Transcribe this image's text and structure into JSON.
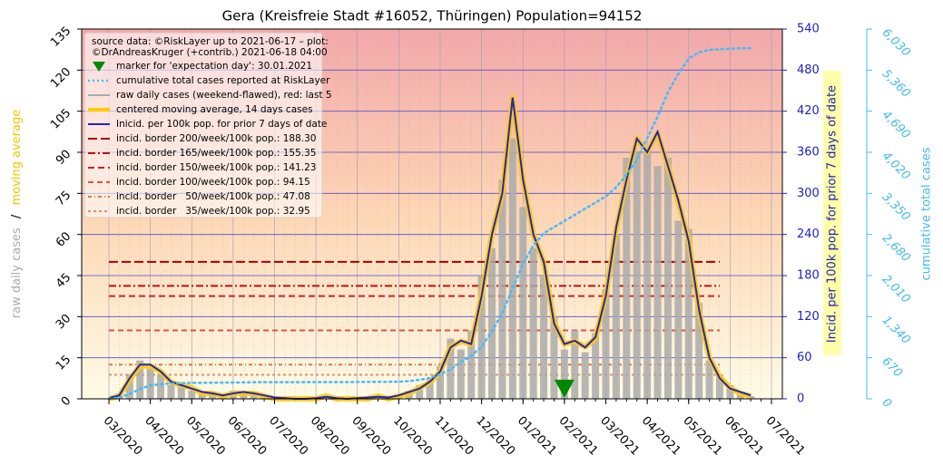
{
  "chart_data": {
    "type": "line",
    "title": "Gera (Kreisfreie Stadt #16052, Thüringen) Population=94152",
    "source": [
      "source data: ©RiskLayer up to 2021-06-17 – plot:",
      "©DrAndreasKruger (+contrib.) 2021-06-18 04:00"
    ],
    "ylabel": [
      "raw daily cases",
      "/",
      "moving average"
    ],
    "y2label": "Incid. per 100k pop. for prior 7 days of date",
    "y3label": "cumulative total cases",
    "grid": true,
    "categories": [
      "03/2020",
      null,
      null,
      null,
      "04/2020",
      null,
      null,
      null,
      "05/2020",
      null,
      null,
      null,
      "06/2020",
      null,
      null,
      null,
      "07/2020",
      null,
      null,
      null,
      "08/2020",
      null,
      null,
      null,
      "09/2020",
      null,
      null,
      null,
      "10/2020",
      null,
      null,
      null,
      "11/2020",
      null,
      null,
      null,
      "12/2020",
      null,
      null,
      null,
      "01/2021",
      null,
      null,
      null,
      "02/2021",
      null,
      null,
      null,
      "03/2021",
      null,
      null,
      null,
      "04/2021",
      null,
      null,
      null,
      "05/2021",
      null,
      null,
      null,
      "06/2021",
      null,
      null,
      null,
      "07/2021"
    ],
    "ylim": [
      0,
      135
    ],
    "yticks": [
      0,
      15,
      30,
      45,
      60,
      75,
      90,
      105,
      120,
      135
    ],
    "y2lim": [
      0,
      540
    ],
    "y2ticks": [
      0,
      60,
      120,
      180,
      240,
      300,
      360,
      420,
      480,
      540
    ],
    "y3lim": [
      0,
      6030
    ],
    "y3ticks": [
      0,
      670,
      {
        "value": 1340,
        "label": "1,340"
      },
      {
        "value": 2010,
        "label": "2,010"
      },
      {
        "value": 2680,
        "label": "2,680"
      },
      {
        "value": 3350,
        "label": "3,350"
      },
      {
        "value": 4020,
        "label": "4,020"
      },
      {
        "value": 4690,
        "label": "4,690"
      },
      {
        "value": 5360,
        "label": "5,360"
      },
      {
        "value": 6030,
        "label": "6,030"
      }
    ],
    "series": [
      {
        "name": "marker for 'expectation day': 30.01.2021",
        "style": "marker",
        "color": "#008800",
        "values": [
          null,
          null,
          null,
          null,
          null,
          null,
          null,
          null,
          null,
          null,
          null,
          null,
          null,
          null,
          null,
          null,
          null,
          null,
          null,
          null,
          null,
          null,
          null,
          null,
          null,
          null,
          null,
          null,
          null,
          null,
          null,
          null,
          null,
          null,
          null,
          null,
          null,
          null,
          null,
          null,
          null,
          null,
          null,
          null,
          3,
          null,
          null,
          null,
          null,
          null,
          null,
          null,
          null,
          null,
          null,
          null,
          null,
          null,
          null,
          null,
          null,
          null,
          null,
          null,
          null
        ]
      },
      {
        "name": "cumulative total cases reported at RiskLayer",
        "style": "dotted",
        "color": "#44bbff",
        "axis": "y3",
        "values": [
          0,
          20,
          80,
          160,
          220,
          240,
          250,
          255,
          260,
          262,
          263,
          265,
          266,
          268,
          270,
          272,
          272,
          272,
          272,
          272,
          273,
          274,
          274,
          274,
          275,
          276,
          277,
          278,
          280,
          290,
          310,
          340,
          400,
          480,
          600,
          700,
          850,
          1100,
          1400,
          1800,
          2200,
          2500,
          2700,
          2800,
          2900,
          3000,
          3100,
          3200,
          3300,
          3450,
          3650,
          3900,
          4250,
          4600,
          5000,
          5300,
          5550,
          5650,
          5690,
          5700,
          5710,
          5715,
          5720,
          null,
          null
        ]
      },
      {
        "name": "raw daily cases (weekend-flawed), red: last 5",
        "style": "bar",
        "color": "#aaaaaa",
        "values": [
          0,
          2,
          9,
          14,
          11,
          9,
          5,
          6,
          3,
          2,
          2,
          1,
          3,
          2,
          2,
          1,
          0,
          0,
          0,
          0,
          0,
          1,
          0,
          0,
          0,
          0,
          1,
          0,
          1,
          3,
          5,
          7,
          12,
          22,
          18,
          25,
          45,
          55,
          80,
          95,
          70,
          55,
          45,
          30,
          18,
          25,
          17,
          24,
          40,
          60,
          88,
          90,
          92,
          85,
          88,
          65,
          62,
          35,
          14,
          9,
          5,
          2,
          1,
          null,
          null
        ]
      },
      {
        "name": "centered moving average, 14 days cases",
        "style": "thick",
        "color": "#ffcc00",
        "values": [
          0,
          1,
          7,
          12,
          12,
          10,
          6,
          5,
          4,
          2,
          2,
          1,
          2,
          2,
          2,
          1,
          0,
          0,
          0,
          0,
          0,
          1,
          0,
          0,
          0,
          0,
          1,
          0,
          1,
          2,
          4,
          6,
          10,
          19,
          21,
          20,
          38,
          60,
          75,
          110,
          80,
          60,
          50,
          28,
          20,
          21,
          19,
          22,
          38,
          62,
          80,
          95,
          90,
          97,
          85,
          72,
          58,
          32,
          15,
          8,
          4,
          2,
          1,
          null,
          null
        ]
      },
      {
        "name": "Inicid. per 100k pop. for prior 7 days of date",
        "style": "line",
        "color": "#2222cc",
        "axis": "y2",
        "values": [
          1,
          5,
          30,
          50,
          50,
          40,
          25,
          20,
          15,
          10,
          8,
          5,
          8,
          10,
          8,
          5,
          2,
          1,
          0,
          0,
          1,
          3,
          1,
          0,
          1,
          2,
          3,
          2,
          5,
          10,
          15,
          25,
          40,
          75,
          85,
          80,
          150,
          240,
          300,
          440,
          320,
          240,
          200,
          110,
          80,
          85,
          75,
          90,
          150,
          250,
          320,
          380,
          360,
          390,
          340,
          290,
          230,
          130,
          60,
          30,
          15,
          10,
          5,
          null,
          null
        ]
      }
    ],
    "borders": [
      {
        "name": "incid. border 200/week/100k pop.: 188.30",
        "level": 200,
        "color": "#aa0000",
        "dash": "10 4"
      },
      {
        "name": "incid. border 165/week/100k pop.: 155.35",
        "level": 165,
        "color": "#bb1111",
        "dash": "8 3 2 3"
      },
      {
        "name": "incid. border 150/week/100k pop.: 141.23",
        "level": 150,
        "color": "#cc2222",
        "dash": "7 4"
      },
      {
        "name": "incid. border 100/week/100k pop.: 94.15",
        "level": 100,
        "color": "#dd5544",
        "dash": "6 4"
      },
      {
        "name": "incid. border   50/week/100k pop.: 47.08",
        "level": 50,
        "color": "#dd7755",
        "dash": "4 3 1 3"
      },
      {
        "name": "incid. border   35/week/100k pop.: 32.95",
        "level": 35,
        "color": "#e09070",
        "dash": "3 3"
      }
    ]
  }
}
